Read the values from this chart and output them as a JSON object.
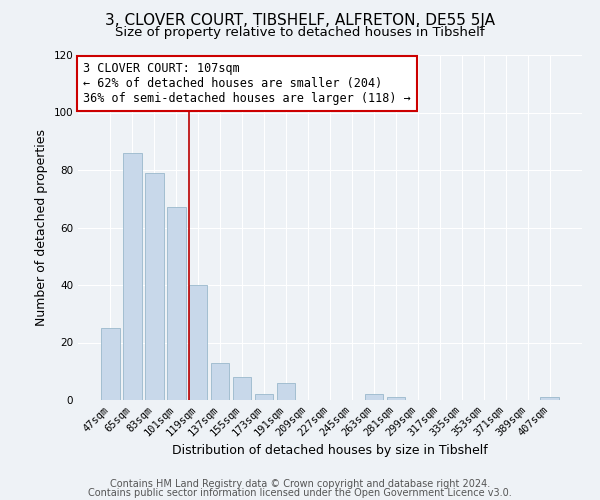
{
  "title": "3, CLOVER COURT, TIBSHELF, ALFRETON, DE55 5JA",
  "subtitle": "Size of property relative to detached houses in Tibshelf",
  "xlabel": "Distribution of detached houses by size in Tibshelf",
  "ylabel": "Number of detached properties",
  "categories": [
    "47sqm",
    "65sqm",
    "83sqm",
    "101sqm",
    "119sqm",
    "137sqm",
    "155sqm",
    "173sqm",
    "191sqm",
    "209sqm",
    "227sqm",
    "245sqm",
    "263sqm",
    "281sqm",
    "299sqm",
    "317sqm",
    "335sqm",
    "353sqm",
    "371sqm",
    "389sqm",
    "407sqm"
  ],
  "values": [
    25,
    86,
    79,
    67,
    40,
    13,
    8,
    2,
    6,
    0,
    0,
    0,
    2,
    1,
    0,
    0,
    0,
    0,
    0,
    0,
    1
  ],
  "bar_color": "#c8d8ea",
  "bar_edge_color": "#9ab8cc",
  "ylim": [
    0,
    120
  ],
  "yticks": [
    0,
    20,
    40,
    60,
    80,
    100,
    120
  ],
  "ref_line_x": 3.57,
  "ref_line_color": "#bb0000",
  "annotation_text": "3 CLOVER COURT: 107sqm\n← 62% of detached houses are smaller (204)\n36% of semi-detached houses are larger (118) →",
  "annotation_box_facecolor": "#ffffff",
  "annotation_box_edgecolor": "#cc0000",
  "footer_line1": "Contains HM Land Registry data © Crown copyright and database right 2024.",
  "footer_line2": "Contains public sector information licensed under the Open Government Licence v3.0.",
  "background_color": "#eef2f6",
  "plot_background_color": "#eef2f6",
  "grid_color": "#ffffff",
  "title_fontsize": 11,
  "subtitle_fontsize": 9.5,
  "axis_label_fontsize": 9,
  "tick_fontsize": 7.5,
  "footer_fontsize": 7,
  "annotation_fontsize": 8.5
}
